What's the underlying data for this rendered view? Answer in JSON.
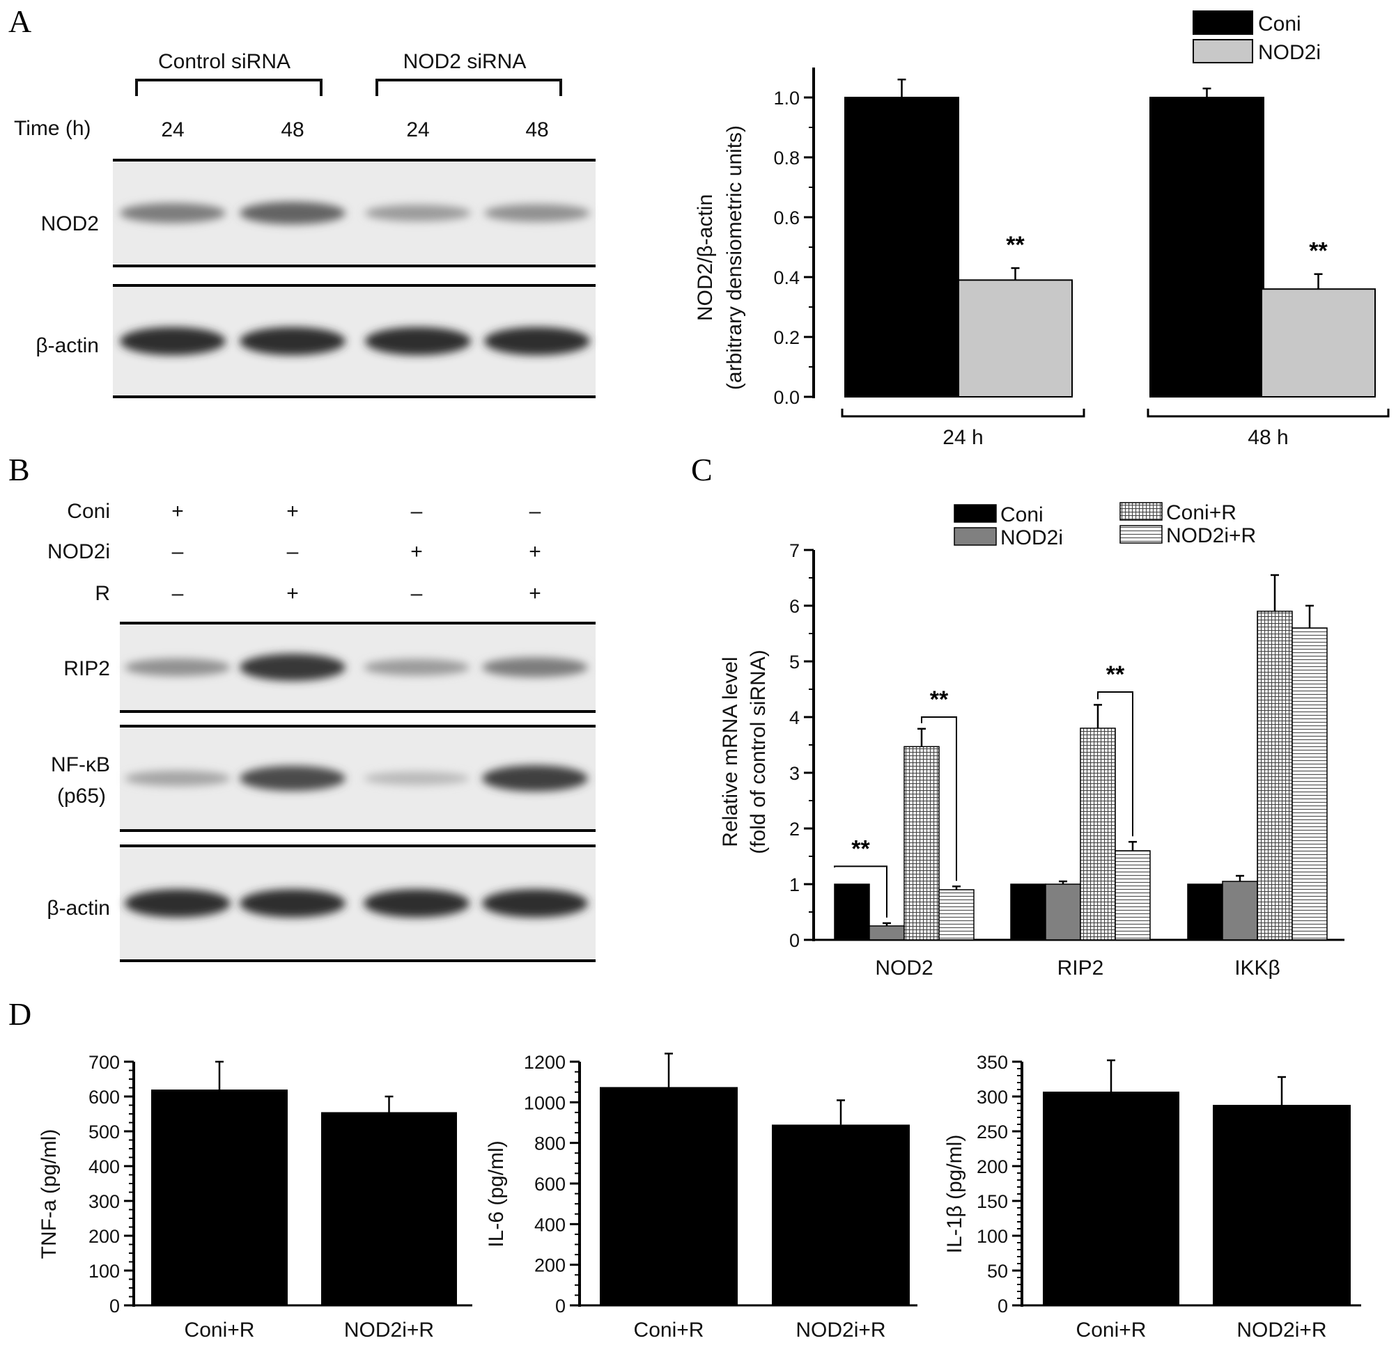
{
  "panels": {
    "A": {
      "letter": "A",
      "blot": {
        "group_labels": [
          "Control siRNA",
          "NOD2 siRNA"
        ],
        "time_label": "Time (h)",
        "times": [
          "24",
          "48",
          "24",
          "48"
        ],
        "rows": [
          {
            "label": "NOD2",
            "intensities": [
              0.55,
              0.68,
              0.4,
              0.45
            ]
          },
          {
            "label": "β-actin",
            "intensities": [
              0.95,
              0.95,
              0.95,
              0.95
            ]
          }
        ]
      }
    },
    "B": {
      "letter": "B",
      "blot": {
        "condition_rows": [
          {
            "label": "Coni",
            "signs": [
              "+",
              "+",
              "–",
              "–"
            ]
          },
          {
            "label": "NOD2i",
            "signs": [
              "–",
              "–",
              "+",
              "+"
            ]
          },
          {
            "label": "R",
            "signs": [
              "–",
              "+",
              "–",
              "+"
            ]
          }
        ],
        "rows": [
          {
            "label": "RIP2",
            "intensities": [
              0.45,
              0.9,
              0.4,
              0.55
            ]
          },
          {
            "label": "NF-κB",
            "label2": "(p65)",
            "intensities": [
              0.35,
              0.8,
              0.25,
              0.85
            ]
          },
          {
            "label": "β-actin",
            "intensities": [
              0.95,
              0.95,
              0.95,
              0.95
            ]
          }
        ]
      }
    },
    "C": {
      "letter": "C"
    },
    "D": {
      "letter": "D"
    }
  },
  "colors": {
    "black": "#000000",
    "gray": "#c8c8c8",
    "dark_gray": "#808080"
  },
  "chart_data": [
    {
      "id": "A-bar",
      "type": "bar",
      "categories": [
        "24 h",
        "48 h"
      ],
      "series": [
        {
          "name": "Coni",
          "values": [
            1.0,
            1.0
          ],
          "errors": [
            0.06,
            0.03
          ],
          "color": "#000000"
        },
        {
          "name": "NOD2i",
          "values": [
            0.39,
            0.36
          ],
          "errors": [
            0.04,
            0.05
          ],
          "color": "#c8c8c8"
        }
      ],
      "ylabel": "NOD2/β-actin",
      "ylabel2": "(arbitrary densiometric units)",
      "ylim": [
        0,
        1.1
      ],
      "yticks": [
        "0.0",
        "0.2",
        "0.4",
        "0.6",
        "0.8",
        "1.0"
      ],
      "annotations": [
        "**",
        "**"
      ],
      "legend": "top-right"
    },
    {
      "id": "C-bar",
      "type": "bar",
      "categories": [
        "NOD2",
        "RIP2",
        "IKKβ"
      ],
      "series": [
        {
          "name": "Coni",
          "values": [
            1.0,
            1.0,
            1.0
          ],
          "errors": [
            0,
            0,
            0
          ],
          "pattern": "black"
        },
        {
          "name": "NOD2i",
          "values": [
            0.25,
            1.0,
            1.05
          ],
          "errors": [
            0.05,
            0.05,
            0.1
          ],
          "pattern": "gray"
        },
        {
          "name": "Coni+R",
          "values": [
            3.47,
            3.8,
            5.9
          ],
          "errors": [
            0.32,
            0.42,
            0.65
          ],
          "pattern": "grid"
        },
        {
          "name": "NOD2i+R",
          "values": [
            0.9,
            1.6,
            5.6
          ],
          "errors": [
            0.06,
            0.16,
            0.4
          ],
          "pattern": "hlines"
        }
      ],
      "ylabel": "Relative mRNA level",
      "ylabel2": "(fold of control siRNA)",
      "ylim": [
        0,
        7
      ],
      "yticks": [
        "0",
        "1",
        "2",
        "3",
        "4",
        "5",
        "6",
        "7"
      ],
      "annotations": [
        "**",
        "**",
        "**"
      ],
      "legend": "top"
    },
    {
      "id": "D1",
      "type": "bar",
      "categories": [
        "Coni+R",
        "NOD2i+R"
      ],
      "values": [
        620,
        555
      ],
      "errors": [
        80,
        45
      ],
      "ylabel": "TNF-a (pg/ml)",
      "ylim": [
        0,
        700
      ],
      "yticks": [
        "0",
        "100",
        "200",
        "300",
        "400",
        "500",
        "600",
        "700"
      ]
    },
    {
      "id": "D2",
      "type": "bar",
      "categories": [
        "Coni+R",
        "NOD2i+R"
      ],
      "values": [
        1075,
        890
      ],
      "errors": [
        165,
        120
      ],
      "ylabel": "IL-6 (pg/ml)",
      "ylim": [
        0,
        1200
      ],
      "yticks": [
        "0",
        "200",
        "400",
        "600",
        "800",
        "1000",
        "1200"
      ]
    },
    {
      "id": "D3",
      "type": "bar",
      "categories": [
        "Coni+R",
        "NOD2i+R"
      ],
      "values": [
        307,
        288
      ],
      "errors": [
        45,
        40
      ],
      "ylabel": "IL-1β (pg/ml)",
      "ylim": [
        0,
        350
      ],
      "yticks": [
        "0",
        "50",
        "100",
        "150",
        "200",
        "250",
        "300",
        "350"
      ]
    }
  ]
}
